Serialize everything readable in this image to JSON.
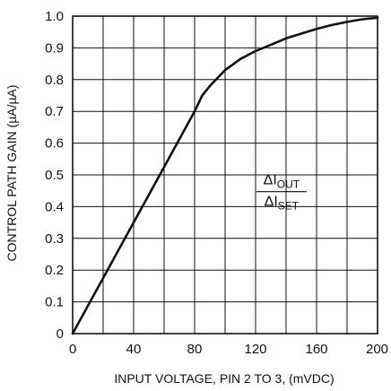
{
  "chart_data": {
    "type": "line",
    "title": "",
    "xlabel": "INPUT VOLTAGE, PIN 2 TO 3, (mVDC)",
    "ylabel": "CONTROL PATH GAIN (µA/µA)",
    "xlim": [
      0,
      200
    ],
    "ylim": [
      0,
      1.0
    ],
    "grid": true,
    "x_ticks": [
      0,
      40,
      80,
      120,
      160,
      200
    ],
    "x_tick_labels": [
      "0",
      "40",
      "80",
      "120",
      "160",
      "200"
    ],
    "y_ticks": [
      0,
      0.1,
      0.2,
      0.3,
      0.4,
      0.5,
      0.6,
      0.7,
      0.8,
      0.9,
      1.0
    ],
    "y_tick_labels": [
      "0",
      "0.1",
      "0.2",
      "0.3",
      "0.4",
      "0.5",
      "0.6",
      "0.7",
      "0.8",
      "0.9",
      "1.0"
    ],
    "x_minor_grid": [
      20,
      60,
      100,
      140,
      180
    ],
    "series": [
      {
        "x": [
          0,
          20,
          40,
          60,
          80,
          85,
          90,
          100,
          110,
          120,
          130,
          140,
          150,
          160,
          170,
          180,
          190,
          200
        ],
        "values": [
          0,
          0.175,
          0.35,
          0.525,
          0.7,
          0.75,
          0.78,
          0.83,
          0.865,
          0.89,
          0.91,
          0.93,
          0.945,
          0.96,
          0.972,
          0.982,
          0.99,
          0.995
        ]
      }
    ],
    "annotation": {
      "delta": "Δ",
      "num_base": "I",
      "num_sub": "OUT",
      "den_base": "I",
      "den_sub": "SET",
      "at_x": 137,
      "at_y": 0.45
    }
  }
}
